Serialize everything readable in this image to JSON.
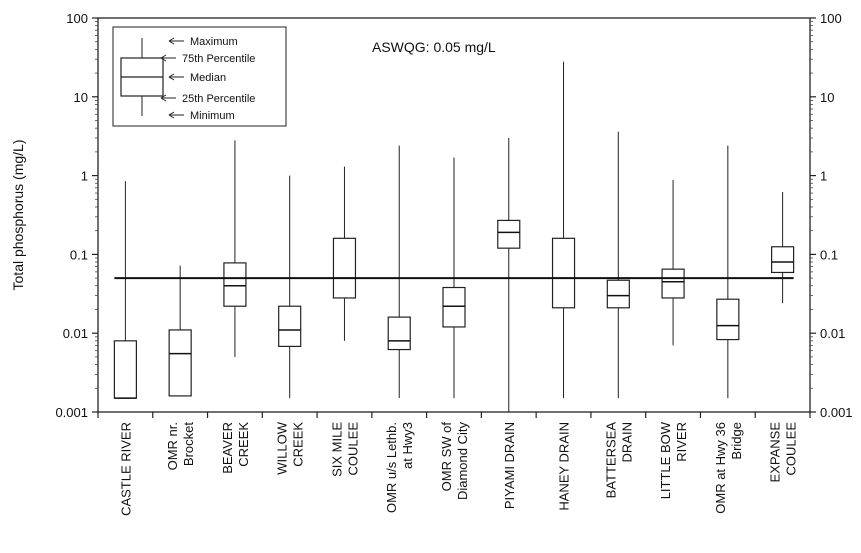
{
  "chart_data": {
    "type": "box",
    "ylabel": "Total phosphorus (mg/L)",
    "yscale": "log",
    "ylim": [
      0.001,
      100
    ],
    "yticks": [
      {
        "value": 100,
        "label": "100"
      },
      {
        "value": 10,
        "label": "10"
      },
      {
        "value": 1,
        "label": "1"
      },
      {
        "value": 0.1,
        "label": "0.1"
      },
      {
        "value": 0.01,
        "label": "0.01"
      },
      {
        "value": 0.001,
        "label": "0.001"
      }
    ],
    "guideline": {
      "value": 0.05,
      "label": "ASWQG: 0.05 mg/L"
    },
    "legend": {
      "position": "top-left",
      "items": [
        "Maximum",
        "75th Percentile",
        "Median",
        "25th Percentile",
        "Minimum"
      ]
    },
    "grid": false,
    "categories": [
      {
        "lines": [
          "CASTLE RIVER"
        ]
      },
      {
        "lines": [
          "OMR nr.",
          "Brocket"
        ]
      },
      {
        "lines": [
          "BEAVER",
          "CREEK"
        ]
      },
      {
        "lines": [
          "WILLOW",
          "CREEK"
        ]
      },
      {
        "lines": [
          "SIX MILE",
          "COULEE"
        ]
      },
      {
        "lines": [
          "OMR u/s Lethb.",
          "at Hwy3"
        ]
      },
      {
        "lines": [
          "OMR SW of",
          "Diamond City"
        ]
      },
      {
        "lines": [
          "PIYAMI DRAIN"
        ]
      },
      {
        "lines": [
          "HANEY DRAIN"
        ]
      },
      {
        "lines": [
          "BATTERSEA",
          "DRAIN"
        ]
      },
      {
        "lines": [
          "LITTLE BOW",
          "RIVER"
        ]
      },
      {
        "lines": [
          "OMR at Hwy 36",
          "Bridge"
        ]
      },
      {
        "lines": [
          "EXPANSE",
          "COULEE"
        ]
      }
    ],
    "boxes": [
      {
        "min": 0.0015,
        "q1": 0.0015,
        "median": 0.0015,
        "q3": 0.008,
        "max": 0.85
      },
      {
        "min": 0.0016,
        "q1": 0.0016,
        "median": 0.0055,
        "q3": 0.011,
        "max": 0.072
      },
      {
        "min": 0.005,
        "q1": 0.022,
        "median": 0.04,
        "q3": 0.078,
        "max": 2.8
      },
      {
        "min": 0.0015,
        "q1": 0.0068,
        "median": 0.011,
        "q3": 0.022,
        "max": 1.0
      },
      {
        "min": 0.008,
        "q1": 0.028,
        "median": 0.05,
        "q3": 0.16,
        "max": 1.3
      },
      {
        "min": 0.0015,
        "q1": 0.0062,
        "median": 0.008,
        "q3": 0.016,
        "max": 2.4
      },
      {
        "min": 0.0015,
        "q1": 0.012,
        "median": 0.022,
        "q3": 0.038,
        "max": 1.7
      },
      {
        "min": 0.001,
        "q1": 0.12,
        "median": 0.19,
        "q3": 0.27,
        "max": 3.0
      },
      {
        "min": 0.0015,
        "q1": 0.021,
        "median": 0.05,
        "q3": 0.16,
        "max": 28
      },
      {
        "min": 0.0015,
        "q1": 0.021,
        "median": 0.03,
        "q3": 0.047,
        "max": 3.6
      },
      {
        "min": 0.007,
        "q1": 0.028,
        "median": 0.045,
        "q3": 0.065,
        "max": 0.88
      },
      {
        "min": 0.0015,
        "q1": 0.0083,
        "median": 0.0125,
        "q3": 0.027,
        "max": 2.4
      },
      {
        "min": 0.024,
        "q1": 0.059,
        "median": 0.08,
        "q3": 0.125,
        "max": 0.62
      }
    ]
  }
}
